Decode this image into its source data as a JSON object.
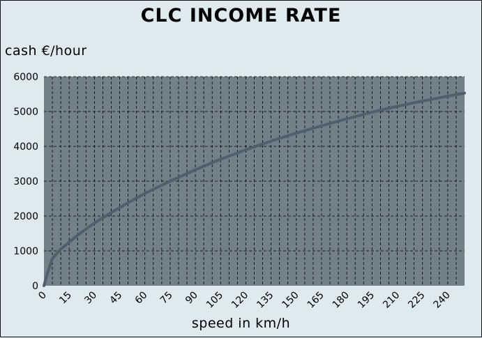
{
  "chart_data": {
    "type": "line",
    "title": "CLC INCOME RATE",
    "ylabel": "cash €/hour",
    "xlabel": "speed in km/h",
    "xlim": [
      0,
      250
    ],
    "ylim": [
      0,
      6000
    ],
    "xticks": [
      0,
      15,
      30,
      45,
      60,
      75,
      90,
      105,
      120,
      135,
      150,
      165,
      180,
      195,
      210,
      225,
      240
    ],
    "yticks": [
      0,
      1000,
      2000,
      3000,
      4000,
      5000,
      6000
    ],
    "xticks_minor_step": 5,
    "grid": true,
    "legend": "none",
    "colors": {
      "plot_background": "#718089",
      "page_background": "#dfe9f0",
      "line": "#4d606b",
      "grid": "#000000"
    },
    "series": [
      {
        "x": [
          0,
          2,
          5,
          10,
          15,
          20,
          30,
          40,
          50,
          60,
          75,
          90,
          105,
          120,
          135,
          150,
          165,
          180,
          195,
          210,
          225,
          240,
          250
        ],
        "values": [
          0,
          350,
          780,
          1050,
          1250,
          1450,
          1800,
          2100,
          2380,
          2650,
          3000,
          3330,
          3630,
          3900,
          4150,
          4380,
          4590,
          4790,
          4980,
          5150,
          5300,
          5440,
          5530
        ]
      }
    ]
  }
}
